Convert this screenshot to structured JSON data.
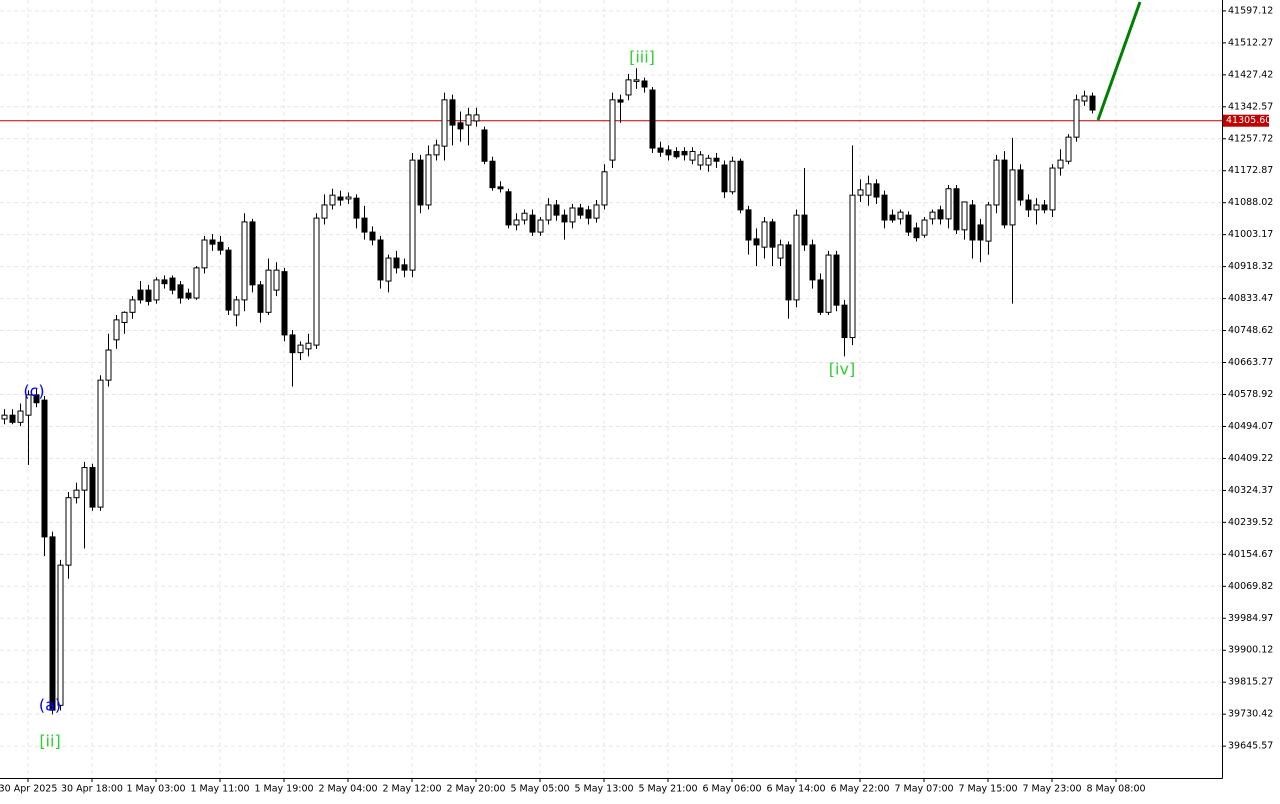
{
  "chart_data": {
    "type": "candlestick",
    "open": [
      40514,
      40524,
      40505,
      40524,
      40578,
      40564,
      40201,
      39754,
      40126,
      40305,
      40325,
      40385,
      40280,
      40617,
      40724,
      40770,
      40797,
      40856,
      40856,
      40830,
      40883,
      40888,
      40870,
      40848,
      40835,
      40915,
      40989,
      40983,
      40962,
      40790,
      40830,
      41037,
      40870,
      40797,
      40856,
      40905,
      40737,
      40690,
      40700,
      40710,
      41047,
      41082,
      41103,
      41098,
      41100,
      41047,
      41010,
      40989,
      40880,
      40941,
      40923,
      40909,
      41201,
      41082,
      41215,
      41238,
      41361,
      41300,
      41294,
      41305,
      41281,
      41198,
      41130,
      41117,
      41029,
      41042,
      41055,
      41010,
      41042,
      41082,
      41055,
      41037,
      41074,
      41069,
      41047,
      41082,
      41201,
      41361,
      41374,
      41410,
      41411,
      41387,
      41233,
      41228,
      41224,
      41224,
      41201,
      41188,
      41188,
      41206,
      41188,
      41117,
      41198,
      41069,
      40992,
      40970,
      41037,
      40941,
      40976,
      40830,
      41055,
      40976,
      40883,
      40797,
      40949,
      40816,
      40730,
      41108,
      41108,
      41138,
      41108,
      41055,
      41045,
      41055,
      41021,
      41002,
      41045,
      41069,
      41045,
      41125,
      41016,
      41082,
      41029,
      40986,
      41082,
      41201,
      41029,
      41175,
      41095,
      41069,
      41082,
      41069,
      41180,
      41198,
      41262,
      41358,
      41371
    ],
    "high": [
      40540,
      40540,
      40555,
      40590,
      40595,
      40575,
      40215,
      40140,
      40320,
      40345,
      40400,
      40395,
      40630,
      40740,
      40790,
      40800,
      40840,
      40880,
      40870,
      40890,
      40895,
      40895,
      40880,
      40860,
      40920,
      41000,
      41005,
      41000,
      40970,
      40840,
      41060,
      41045,
      40880,
      40940,
      40930,
      40915,
      40750,
      40720,
      40740,
      41060,
      41110,
      41125,
      41120,
      41115,
      41110,
      41080,
      41025,
      41000,
      40950,
      40960,
      40940,
      41220,
      41215,
      41240,
      41255,
      41380,
      41375,
      41330,
      41340,
      41340,
      41290,
      41210,
      41145,
      41125,
      41060,
      41070,
      41070,
      41050,
      41100,
      41095,
      41070,
      41085,
      41085,
      41080,
      41095,
      41190,
      41380,
      41375,
      41430,
      41445,
      41420,
      41395,
      41250,
      41240,
      41235,
      41235,
      41235,
      41225,
      41215,
      41220,
      41200,
      41210,
      41205,
      41080,
      41020,
      41050,
      41045,
      40990,
      40985,
      41070,
      41180,
      40990,
      40900,
      40960,
      40960,
      40830,
      41240,
      41150,
      41160,
      41150,
      41120,
      41070,
      41070,
      41065,
      41035,
      41050,
      41070,
      41080,
      41135,
      41135,
      41090,
      41095,
      41045,
      41090,
      41215,
      41225,
      41260,
      41190,
      41110,
      41100,
      41095,
      41190,
      41230,
      41270,
      41375,
      41385,
      41380
    ],
    "low": [
      40500,
      40500,
      40495,
      40392,
      40545,
      40150,
      39730,
      39740,
      40090,
      40290,
      40170,
      40270,
      40270,
      40600,
      40700,
      40740,
      40780,
      40820,
      40815,
      40820,
      40860,
      40845,
      40820,
      40830,
      40830,
      40900,
      40960,
      40950,
      40790,
      40760,
      40800,
      40850,
      40770,
      40790,
      40840,
      40720,
      40600,
      40670,
      40680,
      40700,
      41030,
      41070,
      41080,
      41085,
      41020,
      40990,
      40975,
      40860,
      40850,
      40900,
      40890,
      40890,
      41060,
      41070,
      41200,
      41200,
      41240,
      41250,
      41240,
      41290,
      41190,
      41120,
      41115,
      41020,
      41015,
      41030,
      41000,
      41000,
      41030,
      41040,
      40990,
      41020,
      41045,
      41030,
      41035,
      41070,
      41180,
      41300,
      41360,
      41390,
      41380,
      41220,
      41210,
      41200,
      41205,
      41200,
      41190,
      41175,
      41170,
      41180,
      41100,
      41110,
      41060,
      40950,
      40920,
      40940,
      40920,
      40920,
      40780,
      40810,
      40960,
      40860,
      40790,
      40790,
      40800,
      40680,
      40710,
      41090,
      41080,
      41085,
      41020,
      41035,
      41030,
      41000,
      40985,
      40995,
      41030,
      41030,
      41020,
      41005,
      40990,
      40940,
      40930,
      40950,
      41060,
      41020,
      40820,
      41080,
      41050,
      41030,
      41060,
      41050,
      41160,
      41190,
      41250,
      41345,
      41325
    ],
    "close": [
      40524,
      40505,
      40535,
      40578,
      40557,
      40201,
      39741,
      40126,
      40305,
      40325,
      40385,
      40280,
      40617,
      40697,
      40777,
      40797,
      40830,
      40830,
      40826,
      40883,
      40873,
      40856,
      40835,
      40835,
      40915,
      40989,
      40978,
      40962,
      40803,
      40830,
      41037,
      40870,
      40797,
      40909,
      40909,
      40737,
      40690,
      40710,
      40715,
      41047,
      41082,
      41108,
      41095,
      41103,
      41047,
      41010,
      40989,
      40883,
      40941,
      40915,
      40909,
      41201,
      41082,
      41215,
      41241,
      41361,
      41294,
      41284,
      41321,
      41321,
      41198,
      41128,
      41125,
      41029,
      41042,
      41060,
      41010,
      41042,
      41082,
      41055,
      41037,
      41074,
      41055,
      41047,
      41082,
      41170,
      41361,
      41355,
      41414,
      41414,
      41395,
      41233,
      41222,
      41215,
      41210,
      41215,
      41224,
      41215,
      41206,
      41198,
      41117,
      41198,
      41069,
      40989,
      40976,
      41037,
      40970,
      40976,
      40830,
      41055,
      40976,
      40883,
      40797,
      40949,
      40816,
      40730,
      41108,
      41122,
      41138,
      41103,
      41042,
      41042,
      41063,
      41010,
      40995,
      41042,
      41063,
      41045,
      41125,
      41016,
      41090,
      40989,
      40989,
      41082,
      41201,
      41029,
      41175,
      41095,
      41069,
      41082,
      41069,
      41180,
      41201,
      41262,
      41361,
      41371,
      41334
    ],
    "x_labels": [
      "30 Apr 2025",
      "30 Apr 18:00",
      "1 May 03:00",
      "1 May 11:00",
      "1 May 19:00",
      "2 May 04:00",
      "2 May 12:00",
      "2 May 20:00",
      "5 May 05:00",
      "5 May 13:00",
      "5 May 21:00",
      "6 May 06:00",
      "6 May 14:00",
      "6 May 22:00",
      "7 May 07:00",
      "7 May 15:00",
      "7 May 23:00",
      "8 May 08:00"
    ],
    "ylim": [
      39561,
      41626
    ],
    "yticks": [
      41597.12,
      41512.27,
      41427.42,
      41342.57,
      41257.72,
      41172.87,
      41088.02,
      41003.17,
      40918.32,
      40833.47,
      40748.62,
      40663.77,
      40578.92,
      40494.07,
      40409.22,
      40324.37,
      40239.52,
      40154.67,
      40069.82,
      39984.97,
      39900.12,
      39815.27,
      39730.42,
      39645.57
    ],
    "current_price": {
      "value": 41305.6,
      "label": "41305.60"
    },
    "annotations": [
      {
        "text": "(c)",
        "color": "#0000ff"
      },
      {
        "text": "(a)",
        "color": "#0000ff"
      },
      {
        "text": "[ii]",
        "color": "#32cd32"
      },
      {
        "text": "[iii]",
        "color": "#32cd32"
      },
      {
        "text": "[iv]",
        "color": "#32cd32"
      }
    ],
    "grid": true
  }
}
